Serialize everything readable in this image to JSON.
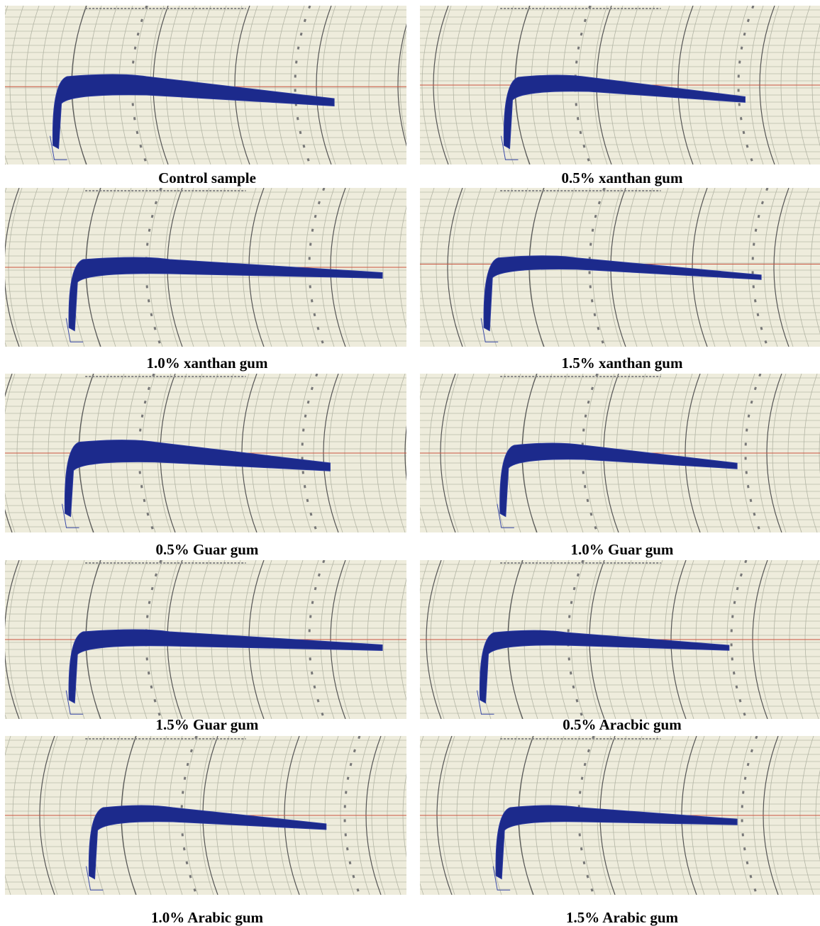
{
  "captions": [
    "Control sample",
    "0.5% xanthan gum",
    "1.0% xanthan gum",
    "1.5% xanthan gum",
    "0.5% Guar gum",
    "1.0% Guar gum",
    "1.5% Guar gum",
    "0.5% Aracbic gum",
    "1.0% Arabic gum",
    "1.5% Arabic gum"
  ]
}
